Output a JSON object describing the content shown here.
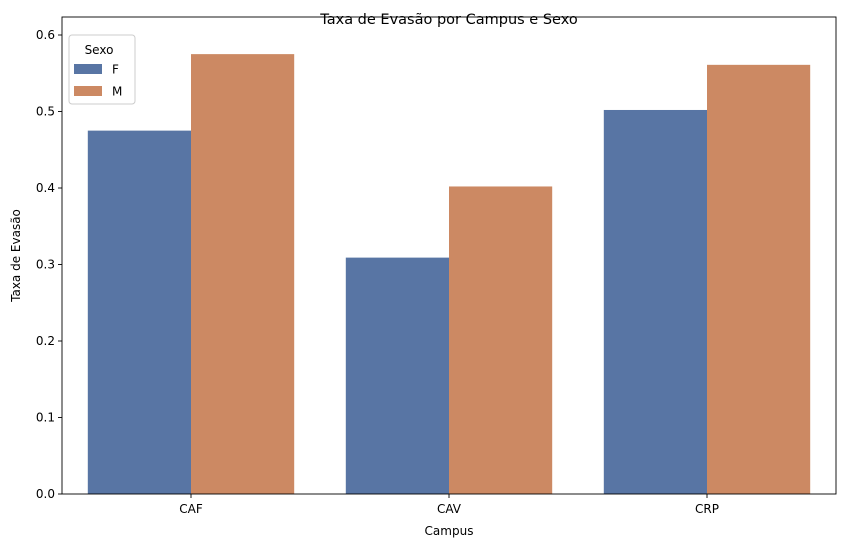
{
  "chart_data": {
    "type": "bar",
    "title": "Taxa de Evasão por Campus e Sexo",
    "xlabel": "Campus",
    "ylabel": "Taxa de Evasão",
    "categories": [
      "CAF",
      "CAV",
      "CRP"
    ],
    "series": [
      {
        "name": "F",
        "values": [
          0.475,
          0.309,
          0.502
        ],
        "color": "#5875a4"
      },
      {
        "name": "M",
        "values": [
          0.575,
          0.402,
          0.561
        ],
        "color": "#cc8963"
      }
    ],
    "ylim": [
      0,
      0.6
    ],
    "yticks": [
      "0.0",
      "0.1",
      "0.2",
      "0.3",
      "0.4",
      "0.5",
      "0.6"
    ],
    "grid": false,
    "legend": {
      "title": "Sexo",
      "placement": "top-left"
    }
  }
}
